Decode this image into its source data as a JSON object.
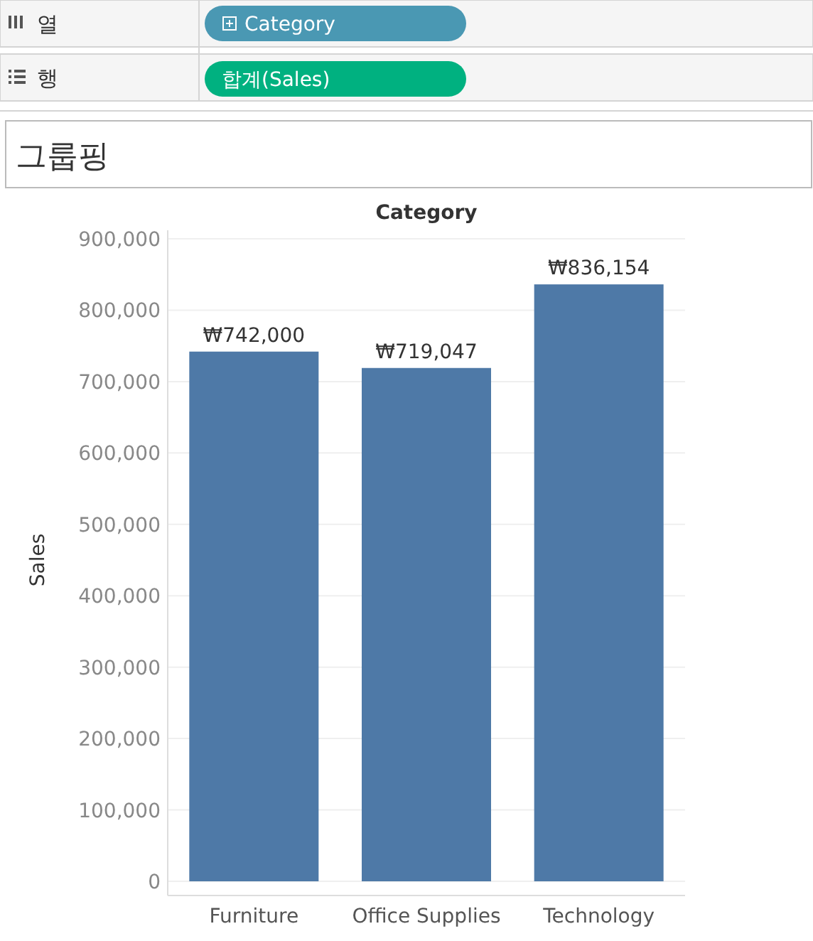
{
  "chart_data": {
    "type": "bar",
    "title": "그룹핑",
    "xlabel": "Category",
    "ylabel": "Sales",
    "annotations": [
      "열",
      "Category",
      "행",
      "합계(Sales)"
    ],
    "categories": [
      "Furniture",
      "Office Supplies",
      "Technology"
    ],
    "values": [
      742000,
      719047,
      836154
    ],
    "value_labels": [
      "₩742,000",
      "₩719,047",
      "₩836,154"
    ],
    "color": "#4e79a7",
    "ylim": [
      0,
      900000
    ],
    "yticks": [
      {
        "value": 0,
        "label": "0"
      },
      {
        "value": 100000,
        "label": "100,000"
      },
      {
        "value": 200000,
        "label": "200,000"
      },
      {
        "value": 300000,
        "label": "300,000"
      },
      {
        "value": 400000,
        "label": "400,000"
      },
      {
        "value": 500000,
        "label": "500,000"
      },
      {
        "value": 600000,
        "label": "600,000"
      },
      {
        "value": 700000,
        "label": "700,000"
      },
      {
        "value": 800000,
        "label": "800,000"
      },
      {
        "value": 900000,
        "label": "900,000"
      }
    ],
    "grid": "y"
  }
}
